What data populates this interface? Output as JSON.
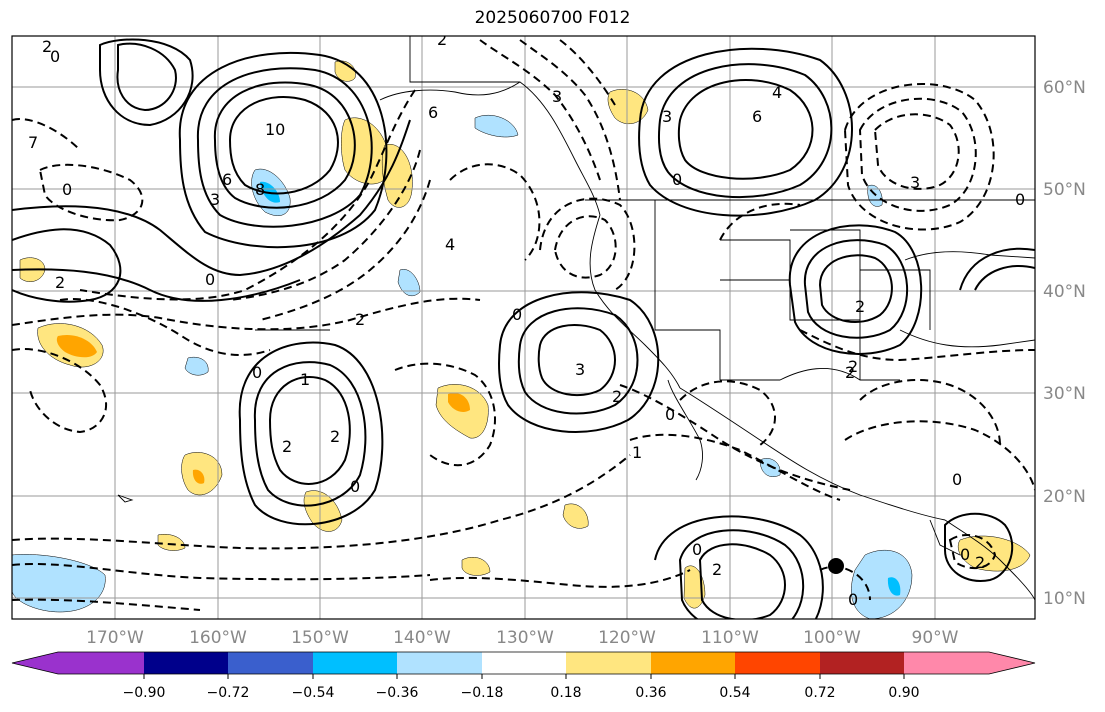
{
  "title": "2025060700 F012",
  "map": {
    "lat_labels": [
      "60°N",
      "50°N",
      "40°N",
      "30°N",
      "20°N",
      "10°N"
    ],
    "lon_labels": [
      "170°W",
      "160°W",
      "150°W",
      "140°W",
      "130°W",
      "120°W",
      "110°W",
      "100°W",
      "90°W"
    ],
    "contour_labels": [
      "2",
      "0",
      "2",
      "10",
      "6",
      "8",
      "0",
      "3",
      "2",
      "4",
      "6",
      "2",
      "0",
      "1",
      "2",
      "0",
      "2",
      "3",
      "2",
      "0",
      "6",
      "4",
      "3",
      "0",
      "2",
      "2",
      "0",
      "1",
      "0",
      "2",
      "0",
      "2",
      "0",
      "0",
      "2",
      "0",
      "3",
      "3",
      "7",
      "0"
    ],
    "contour_line_color": "#000000",
    "grid_color": "#9a9a9a"
  },
  "colorbar": {
    "tick_labels": [
      "−0.90",
      "−0.72",
      "−0.54",
      "−0.36",
      "−0.18",
      "0.18",
      "0.36",
      "0.54",
      "0.72",
      "0.90"
    ],
    "colors": [
      "#9a32cd",
      "#00008b",
      "#3a5fcd",
      "#00bfff",
      "#b0e2ff",
      "#ffffff",
      "#ffe680",
      "#ffa500",
      "#ff4500",
      "#b22222",
      "#ff88aa"
    ]
  }
}
